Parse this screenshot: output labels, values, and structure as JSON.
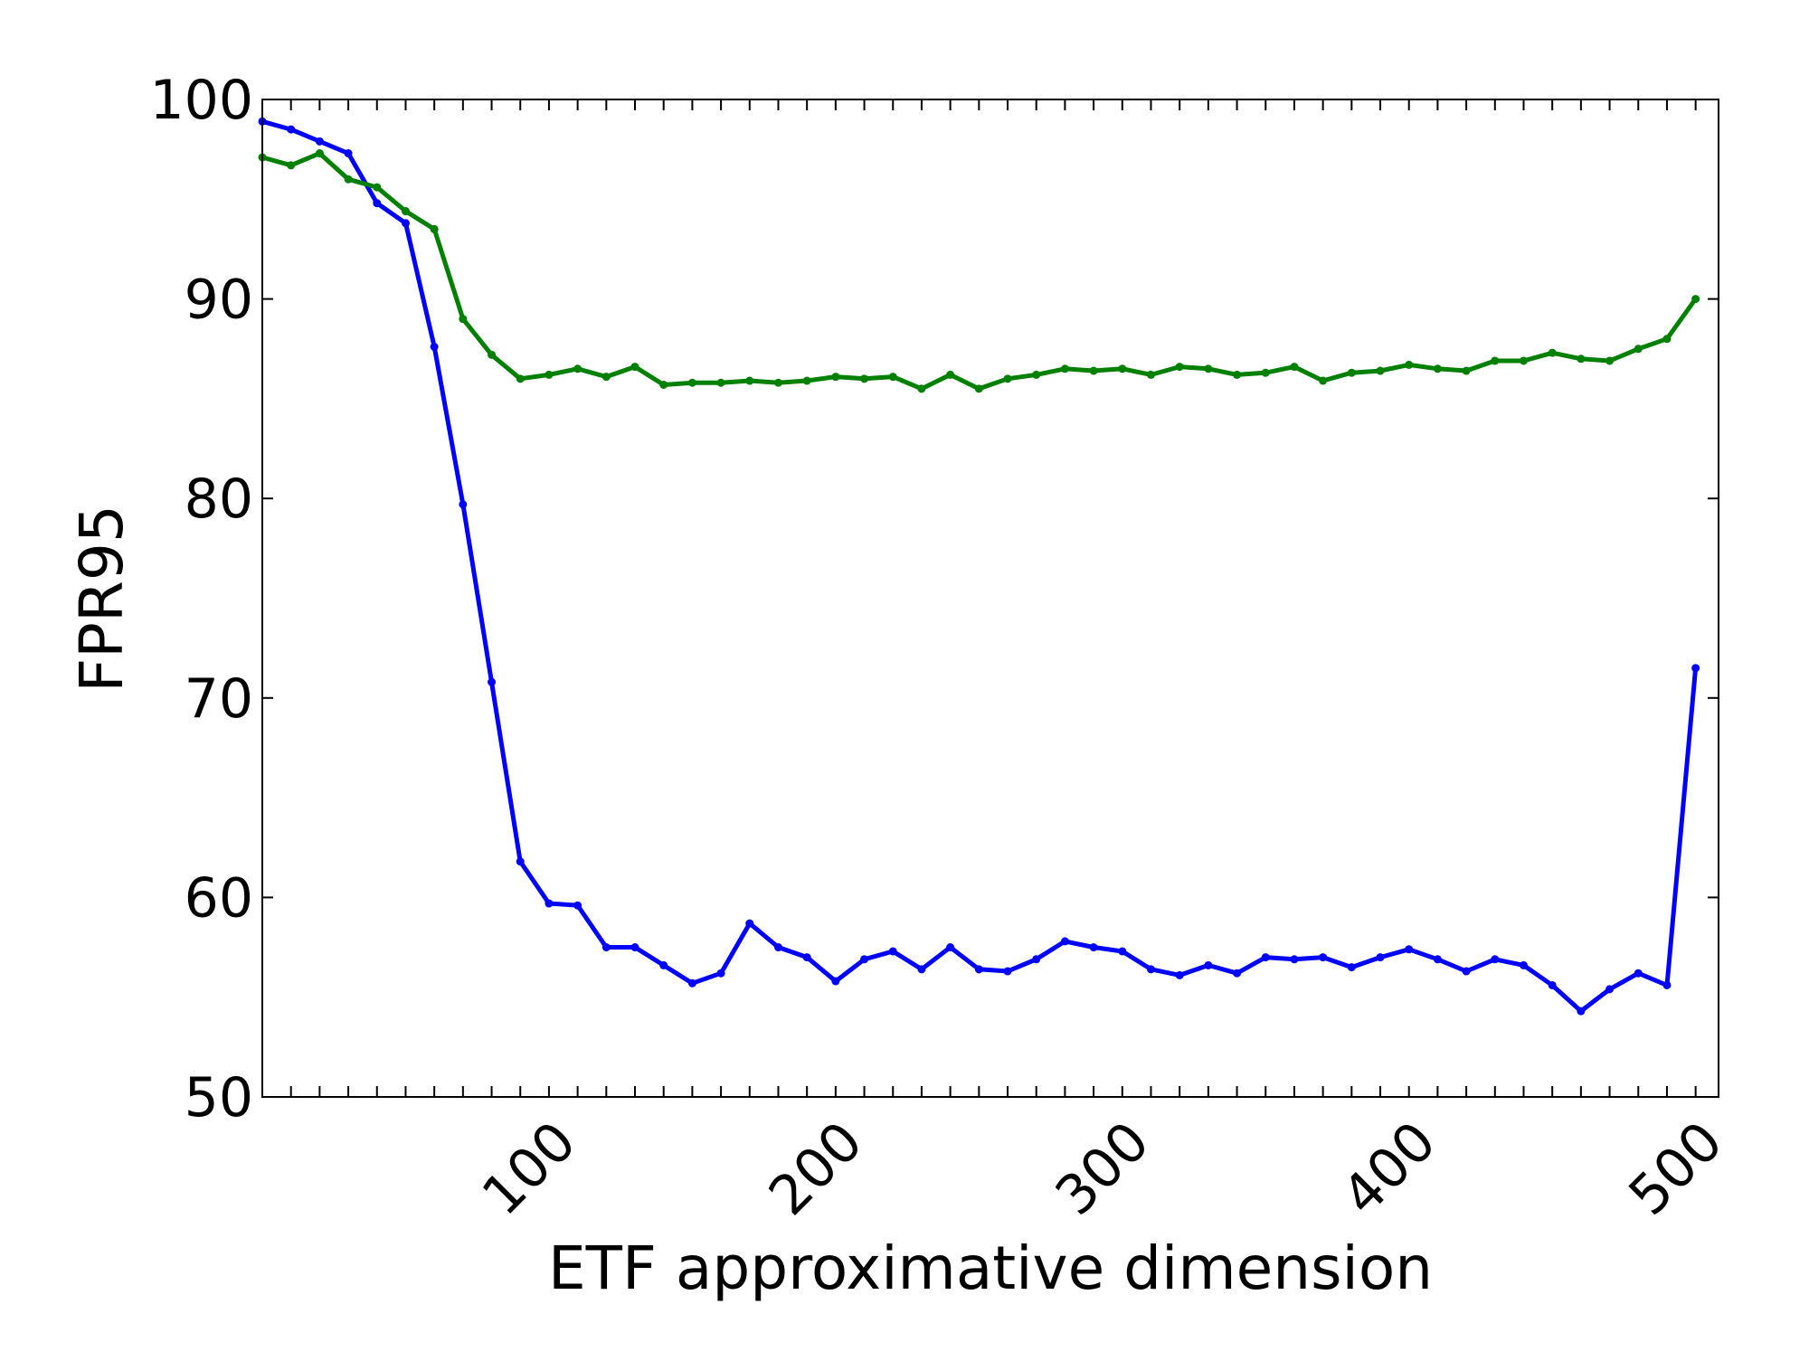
{
  "chart_data": {
    "type": "line",
    "title": "",
    "xlabel": "ETF approximative dimension",
    "ylabel": "FPR95",
    "xlim": [
      1,
      509
    ],
    "ylim": [
      50,
      100
    ],
    "xticks": [
      100,
      200,
      300,
      400,
      500
    ],
    "yticks": [
      50,
      60,
      70,
      80,
      90,
      100
    ],
    "grid": false,
    "legend": "none",
    "x": [
      1,
      11,
      21,
      31,
      41,
      51,
      61,
      71,
      81,
      91,
      101,
      111,
      121,
      131,
      141,
      151,
      161,
      171,
      181,
      191,
      201,
      211,
      221,
      231,
      241,
      251,
      261,
      271,
      281,
      291,
      301,
      311,
      321,
      331,
      341,
      351,
      361,
      371,
      381,
      391,
      401,
      411,
      421,
      431,
      441,
      451,
      461,
      471,
      481,
      491,
      501
    ],
    "series": [
      {
        "color": "#0000ff",
        "values": [
          98.9,
          98.5,
          97.9,
          97.3,
          94.8,
          93.8,
          87.6,
          79.7,
          70.8,
          61.8,
          59.7,
          59.6,
          57.5,
          57.5,
          56.6,
          55.7,
          56.2,
          58.7,
          57.5,
          57.0,
          55.8,
          56.9,
          57.3,
          56.4,
          57.5,
          56.4,
          56.3,
          56.9,
          57.8,
          57.5,
          57.3,
          56.4,
          56.1,
          56.6,
          56.2,
          57.0,
          56.9,
          57.0,
          56.5,
          57.0,
          57.4,
          56.9,
          56.3,
          56.9,
          56.6,
          55.6,
          54.3,
          55.4,
          56.2,
          55.6,
          71.5
        ]
      },
      {
        "color": "#008000",
        "values": [
          97.1,
          96.7,
          97.3,
          96.0,
          95.6,
          94.4,
          93.5,
          89.0,
          87.2,
          86.0,
          86.2,
          86.5,
          86.1,
          86.6,
          85.7,
          85.8,
          85.8,
          85.9,
          85.8,
          85.9,
          86.1,
          86.0,
          86.1,
          85.5,
          86.2,
          85.5,
          86.0,
          86.2,
          86.5,
          86.4,
          86.5,
          86.2,
          86.6,
          86.5,
          86.2,
          86.3,
          86.6,
          85.9,
          86.3,
          86.4,
          86.7,
          86.5,
          86.4,
          86.9,
          86.9,
          87.3,
          87.0,
          86.9,
          87.5,
          88.0,
          90.0
        ]
      }
    ]
  }
}
